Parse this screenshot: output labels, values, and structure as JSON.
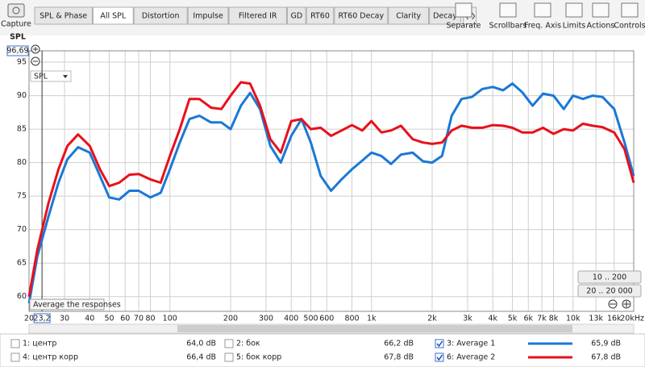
{
  "toolbar": {
    "capture": "Capture",
    "tabs": [
      "SPL & Phase",
      "All SPL",
      "Distortion",
      "Impulse",
      "Filtered IR",
      "GD",
      "RT60",
      "RT60 Decay",
      "Clarity",
      "Decay"
    ],
    "active_tab": 1,
    "tools": [
      "Separate",
      "Scrollbars",
      "Freq. Axis",
      "Limits",
      "Actions",
      "Controls"
    ]
  },
  "chart_data": {
    "type": "line",
    "y_label": "SPL",
    "selector": "SPL",
    "x_scale": "log",
    "grid": true,
    "tooltip": "Average the responses",
    "xlim": [
      20,
      20000
    ],
    "ylim": [
      57.8,
      96.69
    ],
    "xticks": [
      20,
      30,
      40,
      50,
      60,
      70,
      80,
      100,
      200,
      300,
      400,
      500,
      600,
      800,
      {
        "value": 1000,
        "label": "1k"
      },
      {
        "value": 2000,
        "label": "2k"
      },
      {
        "value": 3000,
        "label": "3k"
      },
      {
        "value": 4000,
        "label": "4k"
      },
      {
        "value": 5000,
        "label": "5k"
      },
      {
        "value": 6000,
        "label": "6k"
      },
      {
        "value": 7000,
        "label": "7k"
      },
      {
        "value": 8000,
        "label": "8k"
      },
      {
        "value": 10000,
        "label": "10k"
      },
      {
        "value": 13000,
        "label": "13k"
      },
      {
        "value": 16000,
        "label": "16k"
      },
      {
        "value": 20000,
        "label": "20kHz"
      }
    ],
    "yticks": [
      60,
      65,
      70,
      75,
      80,
      85,
      90,
      95,
      {
        "value": 96.69,
        "label": "96,69"
      }
    ],
    "cursor": {
      "value": 23.2,
      "label": "23,2"
    },
    "x": [
      20,
      22,
      25,
      28,
      31,
      35,
      40,
      45,
      50,
      56,
      63,
      70,
      80,
      90,
      100,
      112,
      125,
      140,
      160,
      180,
      200,
      225,
      250,
      280,
      315,
      355,
      400,
      450,
      500,
      560,
      630,
      710,
      800,
      900,
      1000,
      1120,
      1250,
      1400,
      1600,
      1800,
      2000,
      2240,
      2500,
      2800,
      3150,
      3550,
      4000,
      4500,
      5000,
      5600,
      6300,
      7100,
      8000,
      9000,
      10000,
      11200,
      12500,
      14000,
      16000,
      18000,
      20000
    ],
    "series": [
      {
        "name": "3: Average 1",
        "color": "#1a78d6",
        "level": "65,9 dB",
        "checked": true,
        "values": [
          59,
          66,
          72,
          77,
          80.5,
          82.3,
          81.5,
          78,
          74.8,
          74.5,
          75.8,
          75.8,
          74.8,
          75.5,
          79,
          83,
          86.5,
          87,
          86,
          86,
          85,
          88.5,
          90.4,
          88,
          82.5,
          80,
          84,
          86.5,
          83,
          78,
          75.8,
          77.5,
          79,
          80.3,
          81.5,
          81,
          79.8,
          81.2,
          81.5,
          80.2,
          80,
          81,
          87,
          89.5,
          89.8,
          91,
          91.3,
          90.8,
          91.8,
          90.5,
          88.5,
          90.3,
          90,
          88,
          90,
          89.5,
          90,
          89.8,
          88,
          83,
          78
        ]
      },
      {
        "name": "6: Average 2",
        "color": "#e8101a",
        "level": "67,8 dB",
        "checked": true,
        "values": [
          60,
          67,
          74,
          79,
          82.5,
          84.2,
          82.5,
          79,
          76.5,
          77,
          78.2,
          78.3,
          77.5,
          77,
          81,
          85,
          89.5,
          89.5,
          88.2,
          88,
          90,
          92,
          91.8,
          88.5,
          83.5,
          81.5,
          86.2,
          86.5,
          85,
          85.2,
          84,
          84.8,
          85.6,
          84.8,
          86.2,
          84.5,
          84.8,
          85.5,
          83.5,
          83,
          82.8,
          83,
          84.8,
          85.5,
          85.2,
          85.2,
          85.6,
          85.5,
          85.2,
          84.5,
          84.5,
          85.2,
          84.3,
          85,
          84.8,
          85.8,
          85.5,
          85.3,
          84.5,
          82,
          77
        ]
      }
    ]
  },
  "range_buttons": [
    "10 .. 200",
    "20 .. 20 000"
  ],
  "other_traces": [
    {
      "label": "1: центр",
      "level": "64,0 dB",
      "color": "#d42a2a",
      "checked": false
    },
    {
      "label": "2: бок",
      "level": "66,2 dB",
      "color": "#7f9a18",
      "checked": false
    },
    {
      "label": "4: центр корр",
      "level": "66,4 dB",
      "color": "#e68a1e",
      "checked": false
    },
    {
      "label": "5: бок корр",
      "level": "67,8 dB",
      "color": "#d9a03a",
      "checked": false
    }
  ]
}
